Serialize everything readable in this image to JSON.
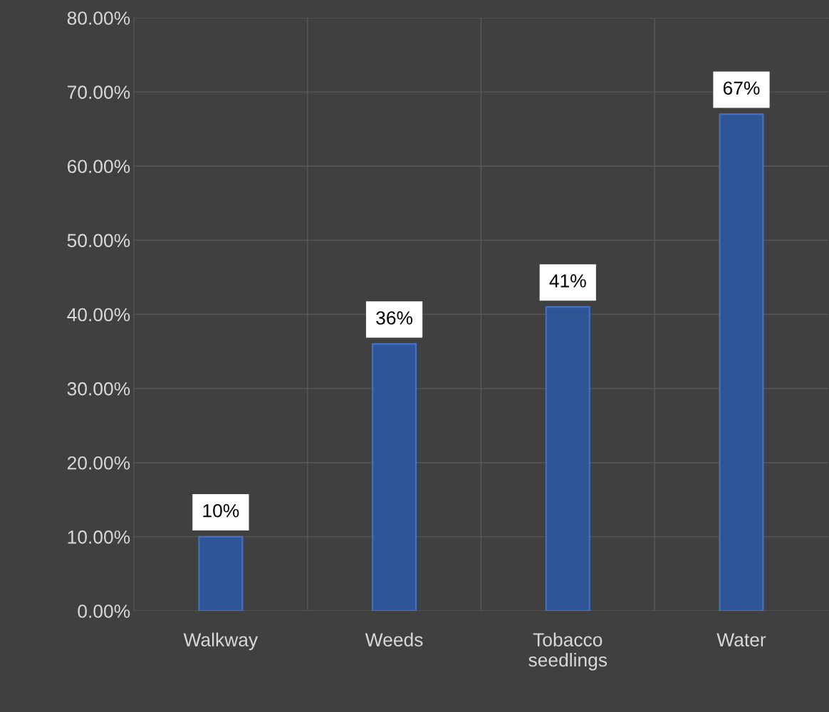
{
  "chart_data": {
    "type": "bar",
    "categories": [
      "Walkway",
      "Weeds",
      "Tobacco seedlings",
      "Water"
    ],
    "values": [
      10,
      36,
      41,
      67
    ],
    "value_labels": [
      "10%",
      "36%",
      "41%",
      "67%"
    ],
    "color": "#2f5597",
    "ylim": [
      0,
      80
    ],
    "yticks": [
      {
        "value": 0,
        "label": "0.00%"
      },
      {
        "value": 10,
        "label": "10.00%"
      },
      {
        "value": 20,
        "label": "20.00%"
      },
      {
        "value": 30,
        "label": "30.00%"
      },
      {
        "value": 40,
        "label": "40.00%"
      },
      {
        "value": 50,
        "label": "50.00%"
      },
      {
        "value": 60,
        "label": "60.00%"
      },
      {
        "value": 70,
        "label": "70.00%"
      },
      {
        "value": 80,
        "label": "80.00%"
      }
    ],
    "grid": true
  }
}
